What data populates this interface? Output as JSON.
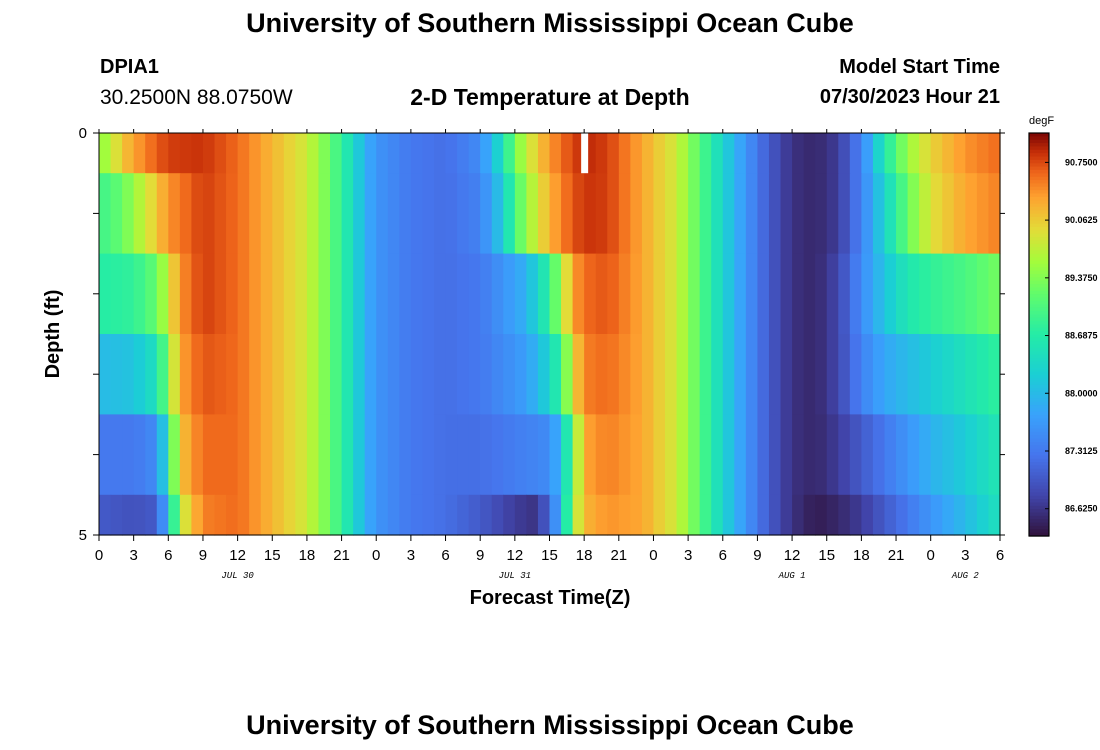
{
  "header": {
    "title": "University of Southern Mississippi Ocean Cube",
    "station": "DPIA1",
    "coords": "30.2500N  88.0750W",
    "plot_title": "2-D Temperature at Depth",
    "model_start_label": "Model Start Time",
    "model_start_value": "07/30/2023 Hour 21"
  },
  "footer": {
    "title": "University of Southern Mississippi Ocean Cube"
  },
  "chart_data": {
    "type": "heatmap",
    "title": "2-D Temperature at Depth",
    "xlabel": "Forecast Time(Z)",
    "ylabel": "Depth (ft)",
    "x_hours_range": [
      0,
      78
    ],
    "x_tick_labels": [
      "0",
      "3",
      "6",
      "9",
      "12",
      "15",
      "18",
      "21",
      "0",
      "3",
      "6",
      "9",
      "12",
      "15",
      "18",
      "21",
      "0",
      "3",
      "6",
      "9",
      "12",
      "15",
      "18",
      "21",
      "0",
      "3",
      "6"
    ],
    "date_labels": [
      {
        "hour": 12,
        "label": "JUL 30"
      },
      {
        "hour": 36,
        "label": "JUL 31"
      },
      {
        "hour": 60,
        "label": "AUG 1"
      },
      {
        "hour": 75,
        "label": "AUG 2"
      }
    ],
    "y_tick_labels": [
      {
        "depth": 0,
        "label": "0"
      },
      {
        "depth": 5,
        "label": "5"
      }
    ],
    "depth_range": [
      0,
      5
    ],
    "depth_levels": 5,
    "missing": {
      "hour": 42,
      "level": 0
    },
    "colorbar": {
      "unit": "degF",
      "min": 86.3,
      "max": 91.1,
      "tick_values": [
        90.75,
        90.0625,
        89.375,
        88.6875,
        88.0,
        87.3125,
        86.625
      ],
      "tick_labels": [
        "90.7500",
        "90.0625",
        "89.3750",
        "88.6875",
        "88.0000",
        "87.3125",
        "86.6250"
      ]
    },
    "temperature_profiles": [
      {
        "level": 0,
        "keypoints": [
          [
            0,
            89.4
          ],
          [
            1,
            89.7
          ],
          [
            2,
            90.1
          ],
          [
            4,
            90.5
          ],
          [
            6,
            90.8
          ],
          [
            9,
            90.85
          ],
          [
            12,
            90.6
          ],
          [
            15,
            90.2
          ],
          [
            18,
            89.8
          ],
          [
            20,
            89.2
          ],
          [
            22,
            88.4
          ],
          [
            23,
            87.9
          ],
          [
            24,
            87.6
          ],
          [
            27,
            87.3
          ],
          [
            30,
            87.2
          ],
          [
            33,
            87.5
          ],
          [
            35,
            88.5
          ],
          [
            36,
            89.3
          ],
          [
            38,
            90.1
          ],
          [
            40,
            90.6
          ],
          [
            42,
            90.9
          ],
          [
            44,
            90.8
          ],
          [
            47,
            90.3
          ],
          [
            50,
            89.8
          ],
          [
            52,
            89.1
          ],
          [
            54,
            88.3
          ],
          [
            56,
            87.6
          ],
          [
            58,
            87.0
          ],
          [
            60,
            86.6
          ],
          [
            62,
            86.5
          ],
          [
            64,
            86.7
          ],
          [
            66,
            87.4
          ],
          [
            68,
            88.6
          ],
          [
            70,
            89.5
          ],
          [
            72,
            90.0
          ],
          [
            75,
            90.4
          ],
          [
            78,
            90.6
          ]
        ]
      },
      {
        "level": 1,
        "keypoints": [
          [
            0,
            88.9
          ],
          [
            2,
            89.2
          ],
          [
            4,
            89.8
          ],
          [
            6,
            90.4
          ],
          [
            9,
            90.8
          ],
          [
            12,
            90.6
          ],
          [
            15,
            90.2
          ],
          [
            18,
            89.8
          ],
          [
            20,
            89.2
          ],
          [
            22,
            88.4
          ],
          [
            23,
            87.9
          ],
          [
            24,
            87.6
          ],
          [
            27,
            87.3
          ],
          [
            30,
            87.2
          ],
          [
            33,
            87.4
          ],
          [
            35,
            88.2
          ],
          [
            36,
            89.0
          ],
          [
            38,
            89.9
          ],
          [
            40,
            90.5
          ],
          [
            42,
            90.85
          ],
          [
            44,
            90.8
          ],
          [
            47,
            90.3
          ],
          [
            50,
            89.8
          ],
          [
            52,
            89.1
          ],
          [
            54,
            88.3
          ],
          [
            56,
            87.6
          ],
          [
            58,
            87.0
          ],
          [
            60,
            86.6
          ],
          [
            62,
            86.5
          ],
          [
            64,
            86.7
          ],
          [
            66,
            87.4
          ],
          [
            68,
            88.3
          ],
          [
            70,
            89.2
          ],
          [
            72,
            89.9
          ],
          [
            75,
            90.3
          ],
          [
            78,
            90.5
          ]
        ]
      },
      {
        "level": 2,
        "keypoints": [
          [
            0,
            88.7
          ],
          [
            3,
            88.8
          ],
          [
            5,
            89.2
          ],
          [
            6,
            89.8
          ],
          [
            7,
            90.4
          ],
          [
            9,
            90.8
          ],
          [
            12,
            90.6
          ],
          [
            15,
            90.2
          ],
          [
            18,
            89.8
          ],
          [
            20,
            89.2
          ],
          [
            22,
            88.4
          ],
          [
            23,
            87.9
          ],
          [
            24,
            87.6
          ],
          [
            27,
            87.3
          ],
          [
            30,
            87.2
          ],
          [
            33,
            87.3
          ],
          [
            37,
            87.9
          ],
          [
            39,
            88.8
          ],
          [
            40,
            89.6
          ],
          [
            41,
            90.3
          ],
          [
            42,
            90.6
          ],
          [
            44,
            90.7
          ],
          [
            47,
            90.3
          ],
          [
            50,
            89.8
          ],
          [
            52,
            89.1
          ],
          [
            54,
            88.3
          ],
          [
            56,
            87.6
          ],
          [
            58,
            87.0
          ],
          [
            60,
            86.6
          ],
          [
            62,
            86.5
          ],
          [
            64,
            86.8
          ],
          [
            66,
            87.5
          ],
          [
            68,
            88.1
          ],
          [
            70,
            88.6
          ],
          [
            72,
            88.8
          ],
          [
            75,
            89.0
          ],
          [
            78,
            89.3
          ]
        ]
      },
      {
        "level": 3,
        "keypoints": [
          [
            0,
            88.0
          ],
          [
            3,
            88.1
          ],
          [
            5,
            88.5
          ],
          [
            6,
            89.4
          ],
          [
            7,
            90.3
          ],
          [
            9,
            90.7
          ],
          [
            12,
            90.6
          ],
          [
            15,
            90.2
          ],
          [
            18,
            89.8
          ],
          [
            20,
            89.2
          ],
          [
            22,
            88.4
          ],
          [
            23,
            87.9
          ],
          [
            24,
            87.6
          ],
          [
            27,
            87.3
          ],
          [
            30,
            87.2
          ],
          [
            33,
            87.3
          ],
          [
            37,
            87.7
          ],
          [
            39,
            88.3
          ],
          [
            40,
            88.9
          ],
          [
            41,
            89.9
          ],
          [
            42,
            90.5
          ],
          [
            44,
            90.6
          ],
          [
            47,
            90.3
          ],
          [
            50,
            89.8
          ],
          [
            52,
            89.1
          ],
          [
            54,
            88.3
          ],
          [
            56,
            87.6
          ],
          [
            58,
            87.0
          ],
          [
            60,
            86.6
          ],
          [
            62,
            86.5
          ],
          [
            64,
            86.8
          ],
          [
            66,
            87.4
          ],
          [
            68,
            87.8
          ],
          [
            70,
            88.0
          ],
          [
            72,
            88.2
          ],
          [
            75,
            88.5
          ],
          [
            78,
            88.8
          ]
        ]
      },
      {
        "level": 4,
        "keypoints": [
          [
            0,
            87.3
          ],
          [
            3,
            87.3
          ],
          [
            5,
            87.5
          ],
          [
            6,
            88.6
          ],
          [
            7,
            90.1
          ],
          [
            9,
            90.6
          ],
          [
            12,
            90.6
          ],
          [
            15,
            90.2
          ],
          [
            18,
            89.8
          ],
          [
            20,
            89.2
          ],
          [
            22,
            88.4
          ],
          [
            23,
            87.9
          ],
          [
            24,
            87.6
          ],
          [
            27,
            87.3
          ],
          [
            30,
            87.2
          ],
          [
            33,
            87.2
          ],
          [
            37,
            87.4
          ],
          [
            39,
            87.5
          ],
          [
            40,
            88.0
          ],
          [
            41,
            89.2
          ],
          [
            42,
            90.3
          ],
          [
            44,
            90.5
          ],
          [
            47,
            90.3
          ],
          [
            50,
            89.8
          ],
          [
            52,
            89.1
          ],
          [
            54,
            88.3
          ],
          [
            56,
            87.6
          ],
          [
            58,
            87.0
          ],
          [
            60,
            86.6
          ],
          [
            62,
            86.5
          ],
          [
            64,
            86.7
          ],
          [
            66,
            87.0
          ],
          [
            68,
            87.3
          ],
          [
            70,
            87.6
          ],
          [
            72,
            87.9
          ],
          [
            75,
            88.2
          ],
          [
            78,
            88.6
          ]
        ]
      },
      {
        "level": 5,
        "keypoints": [
          [
            0,
            87.0
          ],
          [
            3,
            86.9
          ],
          [
            5,
            87.0
          ],
          [
            6,
            88.0
          ],
          [
            7,
            89.7
          ],
          [
            9,
            90.5
          ],
          [
            12,
            90.6
          ],
          [
            15,
            90.2
          ],
          [
            18,
            89.8
          ],
          [
            20,
            89.2
          ],
          [
            22,
            88.4
          ],
          [
            23,
            87.9
          ],
          [
            24,
            87.6
          ],
          [
            27,
            87.3
          ],
          [
            30,
            87.2
          ],
          [
            33,
            87.0
          ],
          [
            36,
            86.7
          ],
          [
            38,
            86.6
          ],
          [
            39,
            87.2
          ],
          [
            40,
            87.9
          ],
          [
            41,
            89.5
          ],
          [
            42,
            90.2
          ],
          [
            44,
            90.4
          ],
          [
            47,
            90.3
          ],
          [
            50,
            89.8
          ],
          [
            52,
            89.1
          ],
          [
            54,
            88.3
          ],
          [
            56,
            87.6
          ],
          [
            58,
            87.0
          ],
          [
            60,
            86.6
          ],
          [
            62,
            86.4
          ],
          [
            64,
            86.5
          ],
          [
            66,
            86.7
          ],
          [
            68,
            87.0
          ],
          [
            70,
            87.3
          ],
          [
            72,
            87.6
          ],
          [
            75,
            88.0
          ],
          [
            78,
            88.5
          ]
        ]
      }
    ]
  }
}
